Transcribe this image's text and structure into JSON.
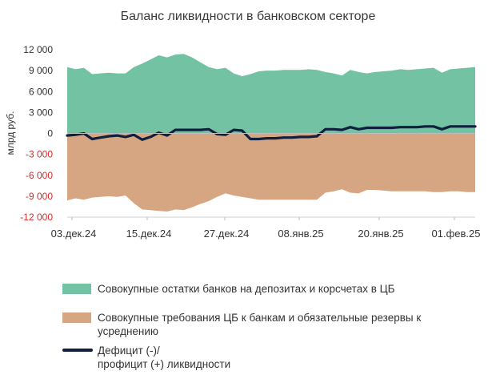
{
  "chart_data": {
    "type": "area",
    "title": "Баланс ликвидности в банковском секторе",
    "ylabel": "млрд руб.",
    "ylim": [
      -12000,
      12000
    ],
    "yticks": [
      12000,
      9000,
      6000,
      3000,
      0,
      -3000,
      -6000,
      -9000,
      -12000
    ],
    "ytick_labels": [
      "12 000",
      "9 000",
      "6 000",
      "3 000",
      "0",
      "-3 000",
      "-6 000",
      "-9 000",
      "-12 000"
    ],
    "negative_label_color": "#d62a2a",
    "xtick_labels": [
      "03.дек.24",
      "15.дек.24",
      "27.дек.24",
      "08.янв.25",
      "20.янв.25",
      "01.фев.25"
    ],
    "colors": {
      "deposits": "#72c2a3",
      "claims": "#d6a582",
      "liquidity": "#0f1f3d"
    },
    "series": [
      {
        "name": "Совокупные остатки банков на депозитах и корсчетах в ЦБ",
        "values": [
          9500,
          9200,
          9400,
          8500,
          8600,
          8700,
          8600,
          8600,
          9500,
          10000,
          10600,
          11200,
          10900,
          11300,
          11400,
          10900,
          10200,
          9500,
          9200,
          9400,
          8600,
          8200,
          8500,
          8900,
          9000,
          9000,
          9100,
          9100,
          9100,
          9200,
          9100,
          8800,
          8600,
          8300,
          9100,
          8800,
          8600,
          8800,
          8900,
          9000,
          9200,
          9100,
          9200,
          9300,
          9400,
          8700,
          9200,
          9300,
          9400,
          9500
        ]
      },
      {
        "name": "Совокупные требования ЦБ к банкам и обязательные резервы к усреднению",
        "values": [
          -9600,
          -9300,
          -9500,
          -9200,
          -9100,
          -9000,
          -9100,
          -8900,
          -10000,
          -10900,
          -11000,
          -11100,
          -11200,
          -10900,
          -11000,
          -10600,
          -10100,
          -9700,
          -9100,
          -8600,
          -8900,
          -9100,
          -9300,
          -9500,
          -9500,
          -9500,
          -9500,
          -9500,
          -9500,
          -9500,
          -9500,
          -8500,
          -8300,
          -8000,
          -8500,
          -8600,
          -8100,
          -8100,
          -8200,
          -8300,
          -8300,
          -8300,
          -8300,
          -8300,
          -8400,
          -8400,
          -8300,
          -8300,
          -8400,
          -8400
        ]
      },
      {
        "name": "Дефицит (-)/\nпрофицит (+) ликвидности",
        "values": [
          -300,
          -200,
          0,
          -800,
          -600,
          -400,
          -300,
          -500,
          -200,
          -900,
          -500,
          100,
          -300,
          500,
          500,
          500,
          500,
          600,
          -100,
          -200,
          500,
          400,
          -800,
          -800,
          -700,
          -700,
          -600,
          -600,
          -500,
          -500,
          -400,
          600,
          600,
          500,
          900,
          600,
          800,
          800,
          800,
          800,
          900,
          900,
          900,
          1000,
          1000,
          600,
          1000,
          1000,
          1000,
          1000
        ]
      }
    ]
  },
  "legend": {
    "deposits_label": "Совокупные остатки банков на депозитах и корсчетах в ЦБ",
    "claims_label": "Совокупные требования ЦБ к банкам и обязательные резервы к усреднению",
    "liquidity_label_line1": "Дефицит (-)/",
    "liquidity_label_line2": "профицит (+) ликвидности"
  }
}
